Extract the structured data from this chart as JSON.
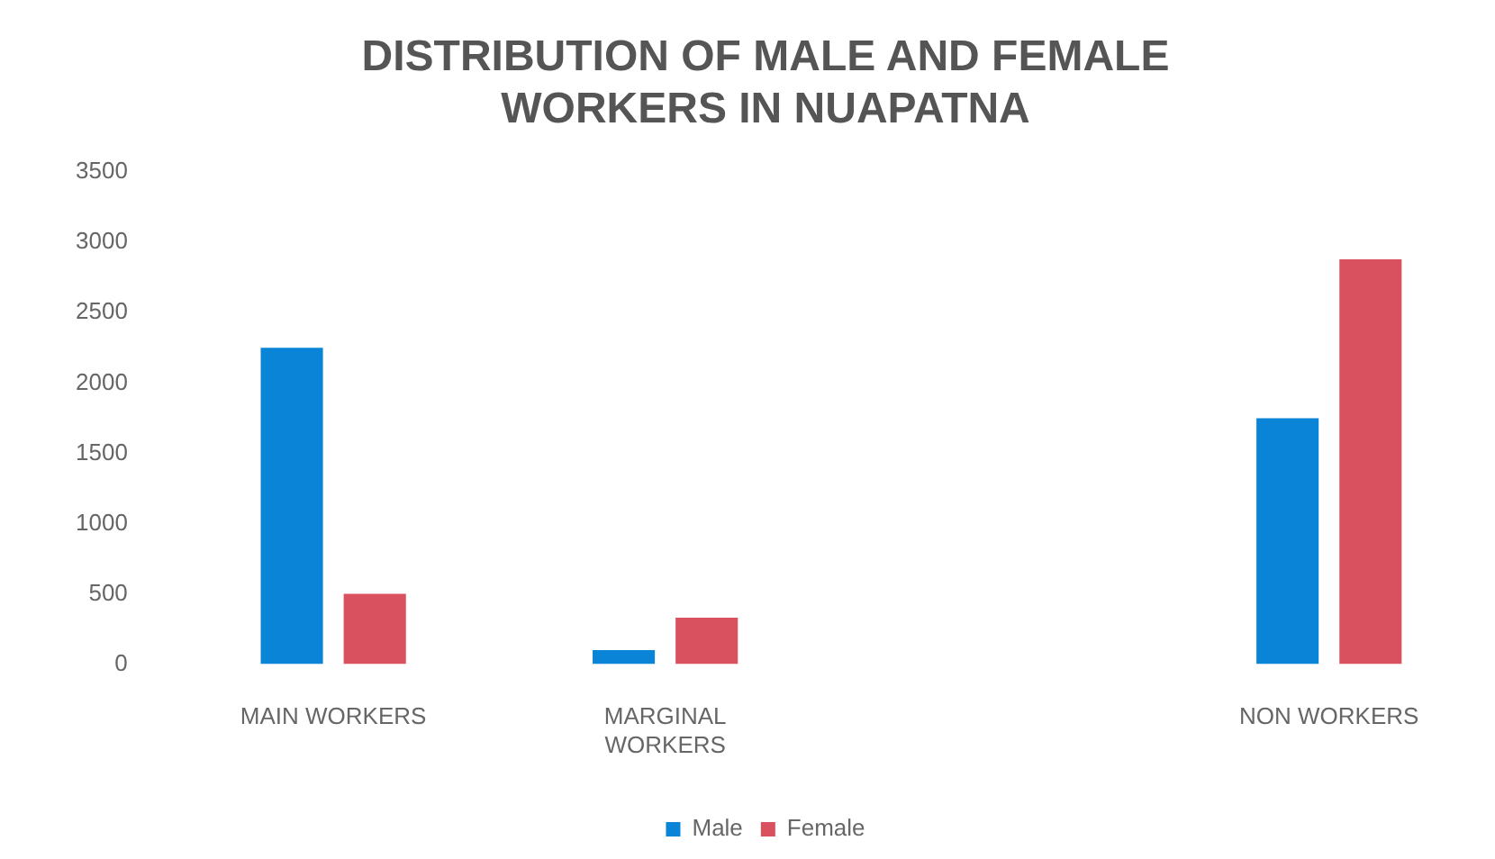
{
  "chart_data": {
    "type": "bar",
    "title": "DISTRIBUTION OF MALE AND FEMALE WORKERS IN NUAPATNA",
    "categories": [
      "MAIN WORKERS",
      "MARGINAL WORKERS",
      null,
      "NON WORKERS"
    ],
    "series": [
      {
        "name": "Male",
        "color": "#0a84d6",
        "values": [
          2250,
          100,
          null,
          1750
        ]
      },
      {
        "name": "Female",
        "color": "#d9505e",
        "values": [
          500,
          330,
          null,
          2880
        ]
      }
    ],
    "ylim": [
      0,
      3500
    ],
    "yticks": [
      0,
      500,
      1000,
      1500,
      2000,
      2500,
      3000,
      3500
    ],
    "grid": false,
    "legend": "bottom"
  }
}
